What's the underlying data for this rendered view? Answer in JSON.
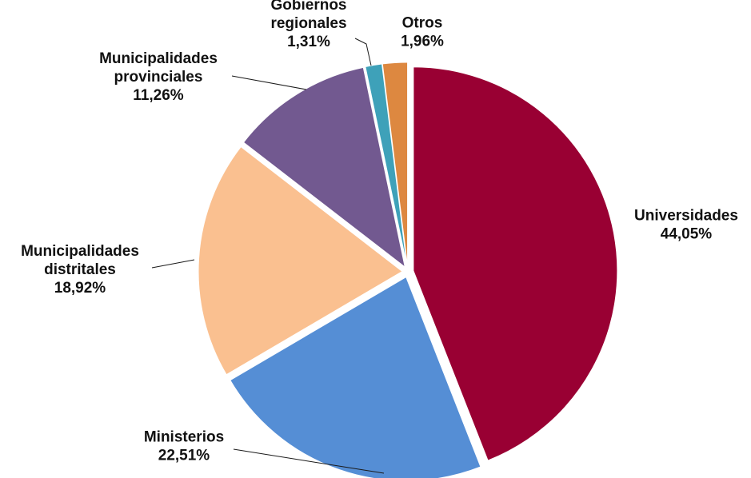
{
  "chart_data": {
    "type": "pie",
    "title": "",
    "start_angle_deg": 0,
    "direction": "clockwise",
    "slices": [
      {
        "label_lines": [
          "Universidades"
        ],
        "value_text": "44,05%",
        "value": 44.05,
        "color": "#990033",
        "exploded": true
      },
      {
        "label_lines": [
          "Ministerios"
        ],
        "value_text": "22,51%",
        "value": 22.51,
        "color": "#558ED5",
        "exploded": true
      },
      {
        "label_lines": [
          "Municipalidades",
          "distritales"
        ],
        "value_text": "18,92%",
        "value": 18.92,
        "color": "#FAC090",
        "exploded": true
      },
      {
        "label_lines": [
          "Municipalidades",
          "provinciales"
        ],
        "value_text": "11,26%",
        "value": 11.26,
        "color": "#725990",
        "exploded": true
      },
      {
        "label_lines": [
          "Gobiernos",
          "regionales"
        ],
        "value_text": "1,31%",
        "value": 1.31,
        "color": "#3EA1B9",
        "exploded": true
      },
      {
        "label_lines": [
          "Otros"
        ],
        "value_text": "1,96%",
        "value": 1.96,
        "color": "#DD8840",
        "exploded": true
      }
    ]
  }
}
